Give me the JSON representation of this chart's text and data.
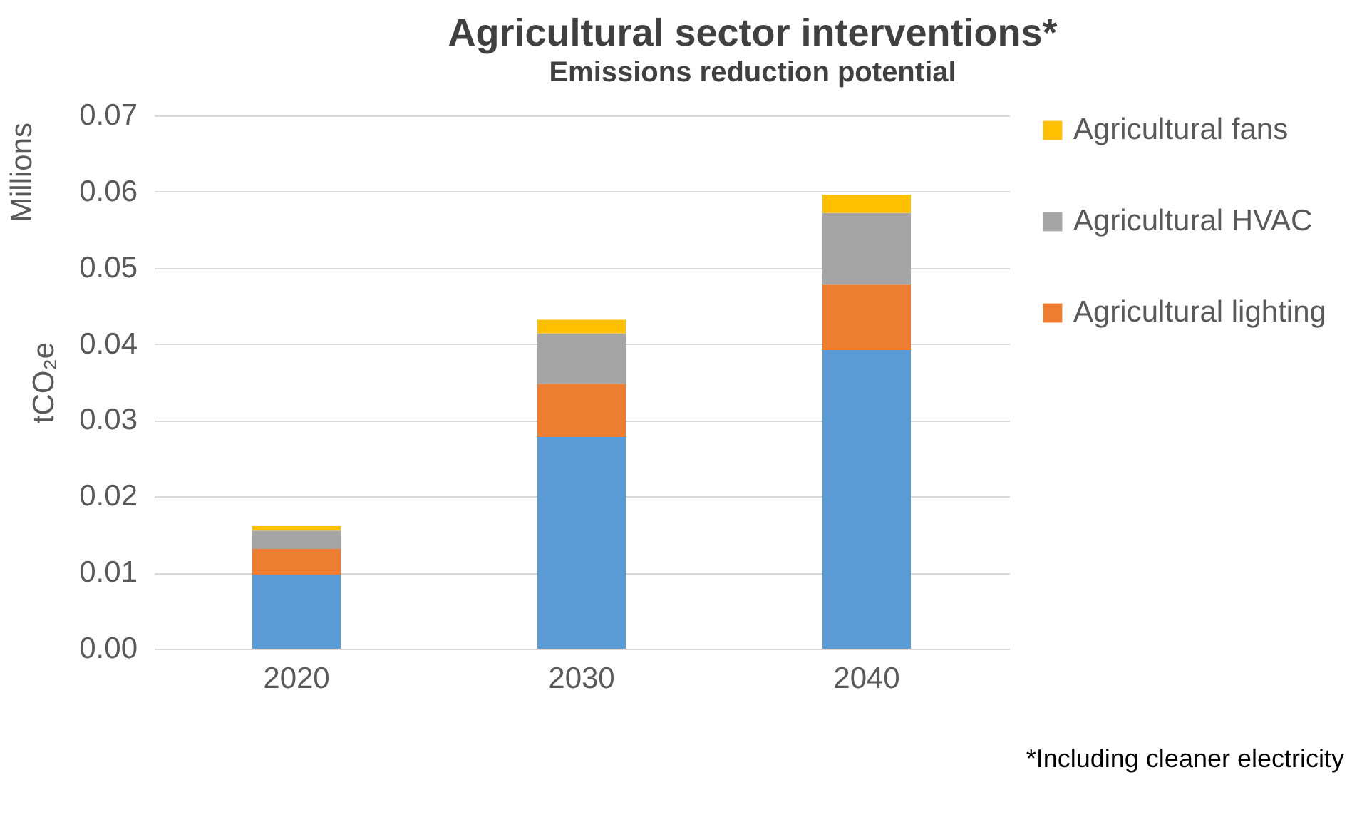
{
  "chart_data": {
    "type": "bar",
    "title": "Agricultural sector interventions*",
    "subtitle": "Emissions reduction potential",
    "ylabel": "tCO₂e",
    "annotations": [
      "Millions",
      "*Including cleaner electricity"
    ],
    "categories": [
      "2020",
      "2030",
      "2040"
    ],
    "stacked": true,
    "series": [
      {
        "color": "#5b9bd5",
        "values": [
          0.0097,
          0.0278,
          0.0392
        ]
      },
      {
        "name": "Agricultural lighting",
        "color": "#ed7d31",
        "values": [
          0.0034,
          0.007,
          0.0086
        ]
      },
      {
        "name": "Agricultural HVAC",
        "color": "#a5a5a5",
        "values": [
          0.0024,
          0.0066,
          0.0094
        ]
      },
      {
        "name": "Agricultural fans",
        "color": "#ffc000",
        "values": [
          0.0006,
          0.0018,
          0.0024
        ]
      }
    ],
    "ylim": [
      0,
      0.07
    ],
    "yticks": [
      {
        "value": 0,
        "label": "0.00"
      },
      {
        "value": 0.01,
        "label": "0.01"
      },
      {
        "value": 0.02,
        "label": "0.02"
      },
      {
        "value": 0.03,
        "label": "0.03"
      },
      {
        "value": 0.04,
        "label": "0.04"
      },
      {
        "value": 0.05,
        "label": "0.05"
      },
      {
        "value": 0.06,
        "label": "0.06"
      },
      {
        "value": 0.07,
        "label": "0.07"
      }
    ],
    "grid": "y",
    "legend": "right"
  }
}
